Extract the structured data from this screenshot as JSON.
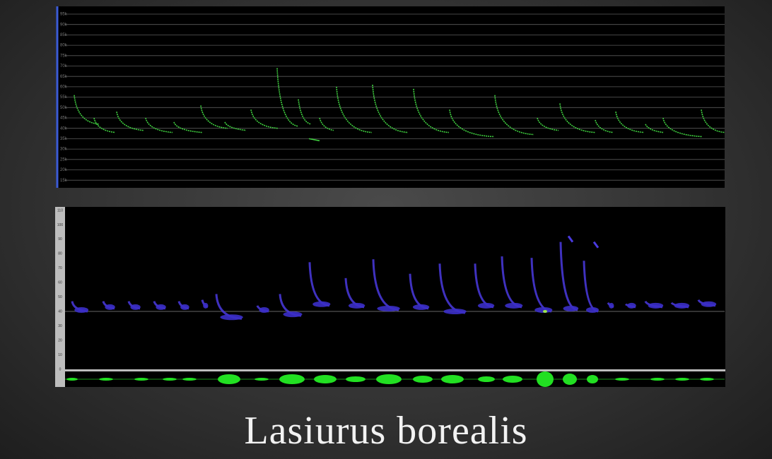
{
  "title": "Lasiurus borealis",
  "zero_crossing_panel": {
    "y_tick_labels": [
      "95k",
      "90k",
      "85k",
      "80k",
      "75k",
      "70k",
      "65k",
      "60k",
      "55k",
      "50k",
      "45k",
      "40k",
      "35k",
      "30k",
      "25k",
      "20k",
      "15k"
    ]
  },
  "spectrogram_panel": {
    "y_tick_labels": [
      "110",
      "100",
      "90",
      "80",
      "70",
      "60",
      "50",
      "40",
      "30",
      "20",
      "10",
      "0"
    ]
  }
}
